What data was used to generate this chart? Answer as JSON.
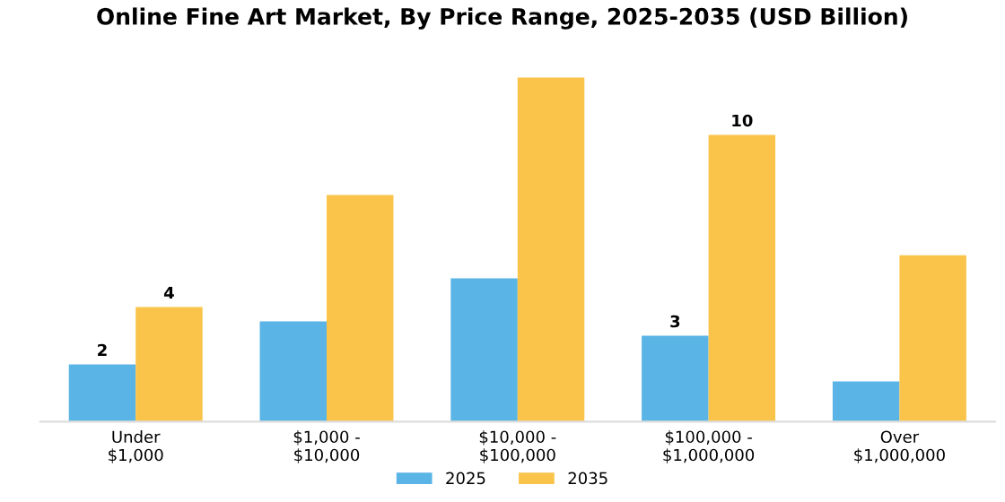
{
  "chart_data": {
    "type": "bar",
    "title": "Online Fine Art Market, By Price Range, 2025-2035 (USD Billion)",
    "categories": [
      "Under\n$1,000",
      "$1,000 -\n$10,000",
      "$10,000 -\n$100,000",
      "$100,000 -\n$1,000,000",
      "Over\n$1,000,000"
    ],
    "series": [
      {
        "name": "2025",
        "color": "#5ab4e5",
        "values": [
          2,
          3.5,
          5,
          3,
          1.4
        ],
        "value_labels": [
          "2",
          null,
          null,
          "3",
          null
        ]
      },
      {
        "name": "2035",
        "color": "#fac44a",
        "values": [
          4,
          7.9,
          12,
          10,
          5.8
        ],
        "value_labels": [
          "4",
          null,
          null,
          "10",
          null
        ]
      }
    ],
    "legend": "bottom",
    "grid": false
  }
}
